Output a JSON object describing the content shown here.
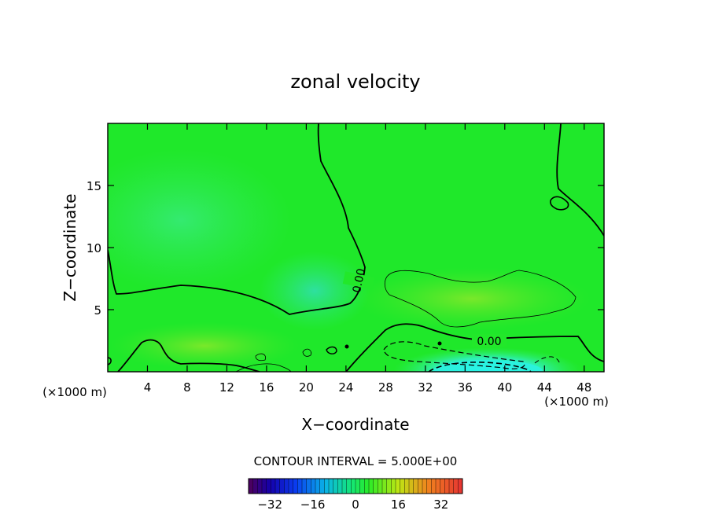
{
  "chart_data": {
    "type": "heatmap",
    "title": "zonal velocity",
    "xlabel": "X−coordinate",
    "ylabel": "Z−coordinate",
    "x_unit_left": "(×1000 m)",
    "x_unit_right": "(×1000 m)",
    "xlim": [
      0,
      50
    ],
    "ylim": [
      0,
      20
    ],
    "xticks": [
      4,
      8,
      12,
      16,
      20,
      24,
      28,
      32,
      36,
      40,
      44,
      48
    ],
    "yticks": [
      5,
      10,
      15
    ],
    "contour_interval_text": "CONTOUR INTERVAL = 5.000E+00",
    "contour_interval": 5.0,
    "contour_labels": [
      "0.00",
      "0.00"
    ],
    "colorbar": {
      "range": [
        -40,
        40
      ],
      "ticks": [
        -32,
        -16,
        0,
        16,
        32
      ],
      "tick_labels": [
        "−32",
        "−16",
        "0",
        "16",
        "32"
      ]
    },
    "field_description": "near-zero zonal velocity field; negative jet near surface at x 30-50 (cyan), weak positive anomaly near z 5-8 at x 28-46",
    "colors": {
      "background_field": "#22e82a",
      "negative_core": "#2af0d8",
      "positive_anomaly": "#66ee2a"
    }
  }
}
